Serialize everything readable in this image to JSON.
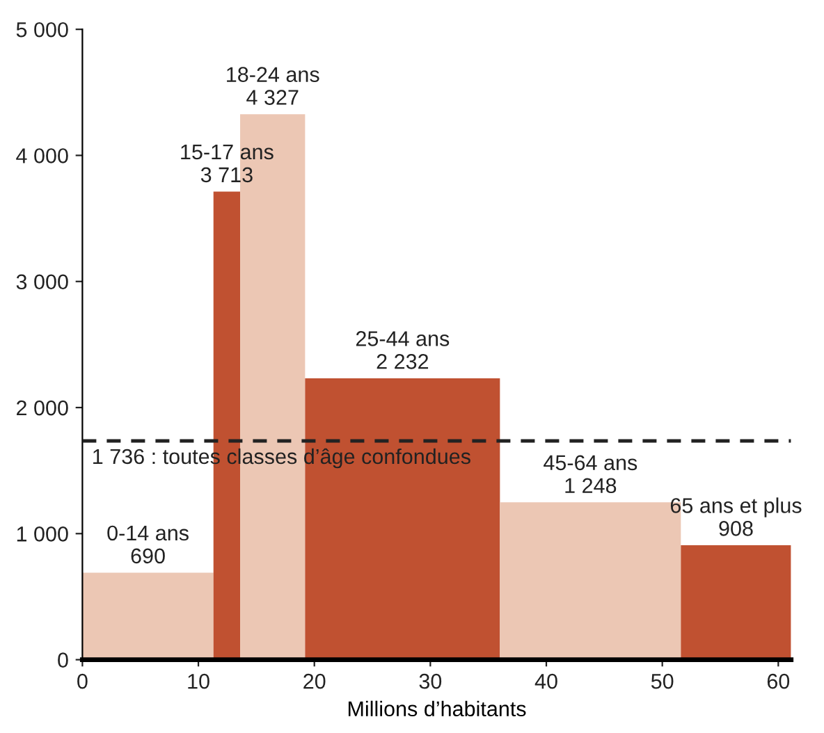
{
  "chart_data": {
    "type": "histogram",
    "xlabel": "Millions d’habitants",
    "bins": [
      0,
      11.3,
      13.6,
      19.2,
      36.0,
      51.6,
      61.1
    ],
    "values": [
      690,
      3713,
      4327,
      2232,
      1248,
      908
    ],
    "categories": [
      "0-14 ans",
      "15-17 ans",
      "18-24 ans",
      "25-44 ans",
      "45-64 ans",
      "65 ans et plus"
    ],
    "value_labels": [
      "690",
      "3 713",
      "4 327",
      "2 232",
      "1 248",
      "908"
    ],
    "colors": [
      "#ecc7b4",
      "#c05131",
      "#ecc7b4",
      "#c05131",
      "#ecc7b4",
      "#c05131"
    ],
    "xlim": [
      0,
      61.1
    ],
    "xticks": [
      0,
      10,
      20,
      30,
      40,
      50,
      60
    ],
    "ylim": [
      0,
      5000
    ],
    "yticks": [
      {
        "value": 0,
        "label": "0"
      },
      {
        "value": 1000,
        "label": "1 000"
      },
      {
        "value": 2000,
        "label": "2 000"
      },
      {
        "value": 3000,
        "label": "3 000"
      },
      {
        "value": 4000,
        "label": "4 000"
      },
      {
        "value": 5000,
        "label": "5 000"
      }
    ],
    "ref_lines": [
      {
        "axis": "y",
        "value": 1736,
        "label": "1 736 : toutes classes d’âge confondues",
        "color": "#222222",
        "line_style": "dashed"
      }
    ],
    "grid": false
  }
}
